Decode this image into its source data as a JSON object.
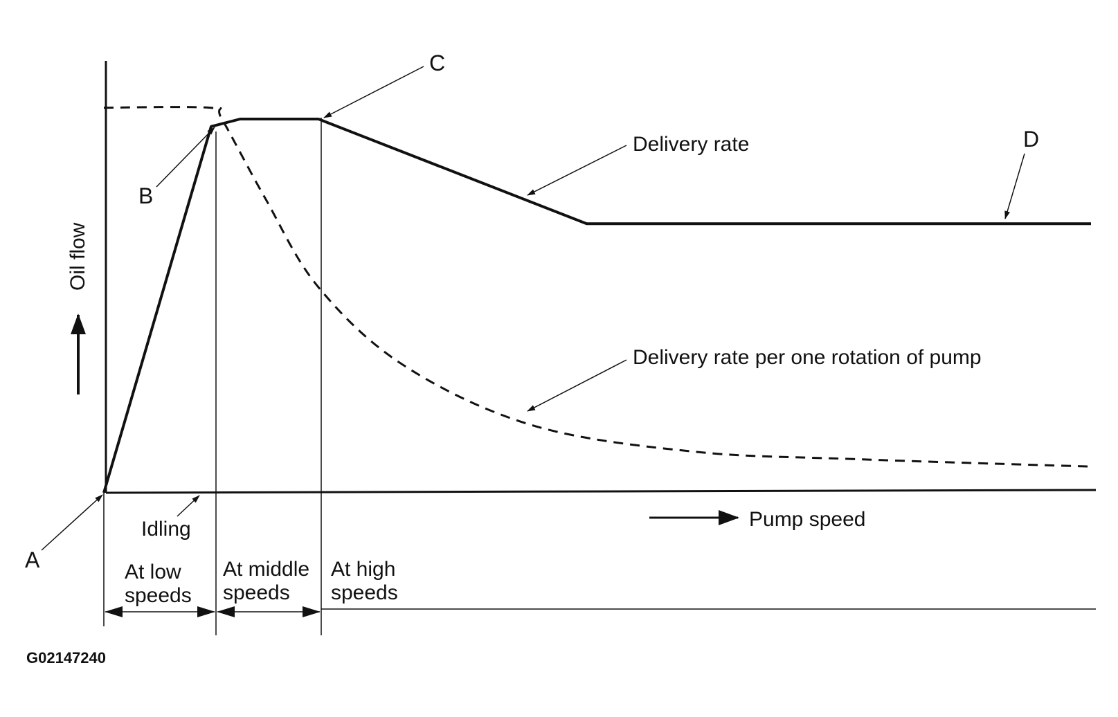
{
  "figure_code": "G02147240",
  "colors": {
    "ink": "#111111",
    "background": "#ffffff"
  },
  "chart_data": {
    "type": "line",
    "title": "",
    "xlabel": "Pump speed",
    "ylabel": "Oil flow",
    "axes": {
      "x_arrow": "right",
      "y_arrow": "up",
      "grid": false
    },
    "series": [
      {
        "key": "delivery",
        "name": "Delivery rate",
        "style": "solid",
        "points": [
          [
            0,
            0
          ],
          [
            1,
            0.98
          ],
          [
            1.27,
            1.0
          ],
          [
            2,
            1.0
          ],
          [
            4.5,
            0.72
          ],
          [
            9.2,
            0.72
          ]
        ]
      },
      {
        "key": "per_rotation",
        "name": "Delivery rate per one rotation of pump",
        "style": "dashed",
        "points": [
          [
            0,
            1.03
          ],
          [
            1,
            1.03
          ],
          [
            1.1,
            1.0
          ],
          [
            1.5,
            0.79
          ],
          [
            2,
            0.55
          ],
          [
            2.8,
            0.34
          ],
          [
            4,
            0.18
          ],
          [
            5.5,
            0.11
          ],
          [
            7,
            0.09
          ],
          [
            9.2,
            0.07
          ]
        ]
      }
    ],
    "point_labels": [
      {
        "label": "A",
        "x": 0,
        "y": 0
      },
      {
        "label": "B",
        "x": 1,
        "y": 0.98
      },
      {
        "label": "C",
        "x": 2,
        "y": 1.0
      },
      {
        "label": "D",
        "x": 8.3,
        "y": 0.72
      }
    ],
    "annotations": [
      {
        "key": "idling",
        "text": "Idling",
        "x": 0.85,
        "y": 0
      }
    ],
    "speed_ranges": [
      {
        "lines": [
          "At low",
          "speeds"
        ],
        "from": 0,
        "to": 1
      },
      {
        "lines": [
          "At middle",
          "speeds"
        ],
        "from": 1,
        "to": 2
      },
      {
        "lines": [
          "At high",
          "speeds"
        ],
        "from": 2,
        "to": null
      }
    ]
  }
}
